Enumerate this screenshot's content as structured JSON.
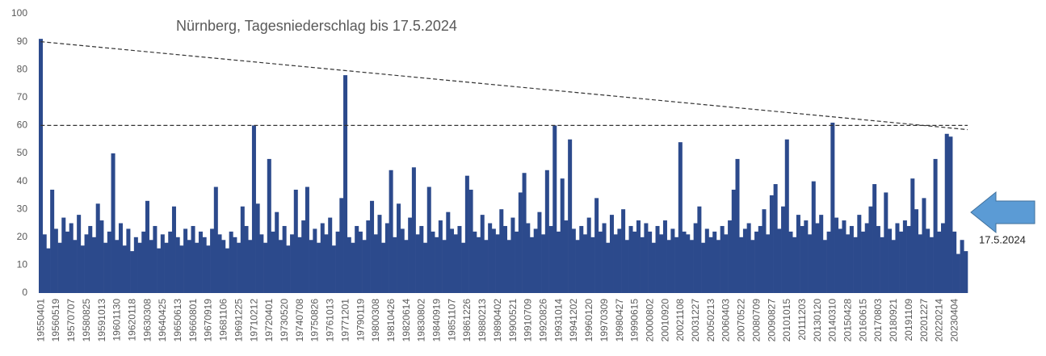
{
  "chart_data": {
    "type": "bar",
    "title": "Nürnberg, Tagesniederschlag bis 17.5.2024",
    "annotation": "17.5.2024",
    "color": "#2c4a8c",
    "ylim": [
      0,
      100
    ],
    "yticks": [
      0,
      10,
      20,
      30,
      40,
      50,
      60,
      70,
      80,
      90,
      100
    ],
    "reference_lines": [
      {
        "y": [
          60,
          60
        ]
      },
      {
        "y": [
          90,
          58.5
        ]
      }
    ],
    "categories": [
      "19550401",
      null,
      null,
      null,
      "19560519",
      null,
      null,
      null,
      "19570707",
      null,
      null,
      null,
      "19580825",
      null,
      null,
      null,
      "19591013",
      null,
      null,
      null,
      "19601130",
      null,
      null,
      null,
      "19620118",
      null,
      null,
      null,
      "19630308",
      null,
      null,
      null,
      "19640425",
      null,
      null,
      null,
      "19650613",
      null,
      null,
      null,
      "19660801",
      null,
      null,
      null,
      "19670919",
      null,
      null,
      null,
      "19681106",
      null,
      null,
      null,
      "19691225",
      null,
      null,
      null,
      "19710212",
      null,
      null,
      null,
      "19720401",
      null,
      null,
      null,
      "19730520",
      null,
      null,
      null,
      "19740708",
      null,
      null,
      null,
      "19750826",
      null,
      null,
      null,
      "19761013",
      null,
      null,
      null,
      "19771201",
      null,
      null,
      null,
      "19790119",
      null,
      null,
      null,
      "19800308",
      null,
      null,
      null,
      "19810426",
      null,
      null,
      null,
      "19820614",
      null,
      null,
      null,
      "19830802",
      null,
      null,
      null,
      "19840919",
      null,
      null,
      null,
      "19851107",
      null,
      null,
      null,
      "19861226",
      null,
      null,
      null,
      "19880213",
      null,
      null,
      null,
      "19890402",
      null,
      null,
      null,
      "19900521",
      null,
      null,
      null,
      "19910709",
      null,
      null,
      null,
      "19920826",
      null,
      null,
      null,
      "19931014",
      null,
      null,
      null,
      "19941202",
      null,
      null,
      null,
      "19960120",
      null,
      null,
      null,
      "19970309",
      null,
      null,
      null,
      "19980427",
      null,
      null,
      null,
      "19990615",
      null,
      null,
      null,
      "20000802",
      null,
      null,
      null,
      "20010920",
      null,
      null,
      null,
      "20021108",
      null,
      null,
      null,
      "20031227",
      null,
      null,
      null,
      "20050213",
      null,
      null,
      null,
      "20060403",
      null,
      null,
      null,
      "20070522",
      null,
      null,
      null,
      "20080709",
      null,
      null,
      null,
      "20090827",
      null,
      null,
      null,
      "20101015",
      null,
      null,
      null,
      "20111203",
      null,
      null,
      null,
      "20130120",
      null,
      null,
      null,
      "20140310",
      null,
      null,
      null,
      "20150428",
      null,
      null,
      null,
      "20160615",
      null,
      null,
      null,
      "20170803",
      null,
      null,
      null,
      "20180921",
      null,
      null,
      null,
      "20191109",
      null,
      null,
      null,
      "20201227",
      null,
      null,
      null,
      "20220214",
      null,
      null,
      null,
      "20230404",
      null,
      null,
      null
    ],
    "values": [
      91,
      21,
      16,
      37,
      23,
      18,
      27,
      22,
      25,
      19,
      28,
      17,
      21,
      24,
      20,
      32,
      26,
      18,
      22,
      50,
      19,
      25,
      17,
      23,
      15,
      20,
      18,
      22,
      33,
      19,
      24,
      16,
      21,
      18,
      22,
      31,
      20,
      17,
      23,
      19,
      24,
      18,
      22,
      20,
      17,
      23,
      38,
      21,
      19,
      16,
      22,
      20,
      18,
      31,
      24,
      19,
      60,
      32,
      21,
      18,
      48,
      22,
      29,
      19,
      24,
      17,
      21,
      37,
      20,
      26,
      38,
      19,
      23,
      18,
      25,
      21,
      27,
      17,
      22,
      34,
      78,
      20,
      18,
      24,
      22,
      19,
      26,
      33,
      21,
      28,
      18,
      25,
      44,
      20,
      32,
      23,
      19,
      27,
      45,
      21,
      24,
      18,
      38,
      22,
      20,
      26,
      19,
      29,
      23,
      21,
      24,
      18,
      42,
      37,
      22,
      20,
      28,
      19,
      25,
      23,
      21,
      30,
      24,
      19,
      27,
      22,
      36,
      43,
      25,
      20,
      23,
      29,
      21,
      44,
      24,
      60,
      22,
      41,
      26,
      55,
      23,
      19,
      24,
      21,
      27,
      20,
      34,
      22,
      25,
      18,
      28,
      21,
      23,
      30,
      19,
      24,
      22,
      26,
      20,
      25,
      22,
      18,
      24,
      21,
      26,
      19,
      23,
      20,
      54,
      22,
      21,
      19,
      25,
      31,
      18,
      23,
      20,
      22,
      19,
      24,
      21,
      26,
      37,
      48,
      20,
      23,
      25,
      19,
      22,
      24,
      30,
      21,
      35,
      39,
      23,
      31,
      55,
      22,
      20,
      28,
      24,
      26,
      21,
      40,
      25,
      28,
      19,
      22,
      61,
      27,
      23,
      26,
      21,
      24,
      20,
      28,
      22,
      25,
      31,
      39,
      24,
      20,
      36,
      23,
      19,
      25,
      22,
      26,
      24,
      41,
      30,
      21,
      34,
      23,
      20,
      48,
      22,
      25,
      57,
      56,
      22,
      14,
      19,
      15
    ]
  }
}
